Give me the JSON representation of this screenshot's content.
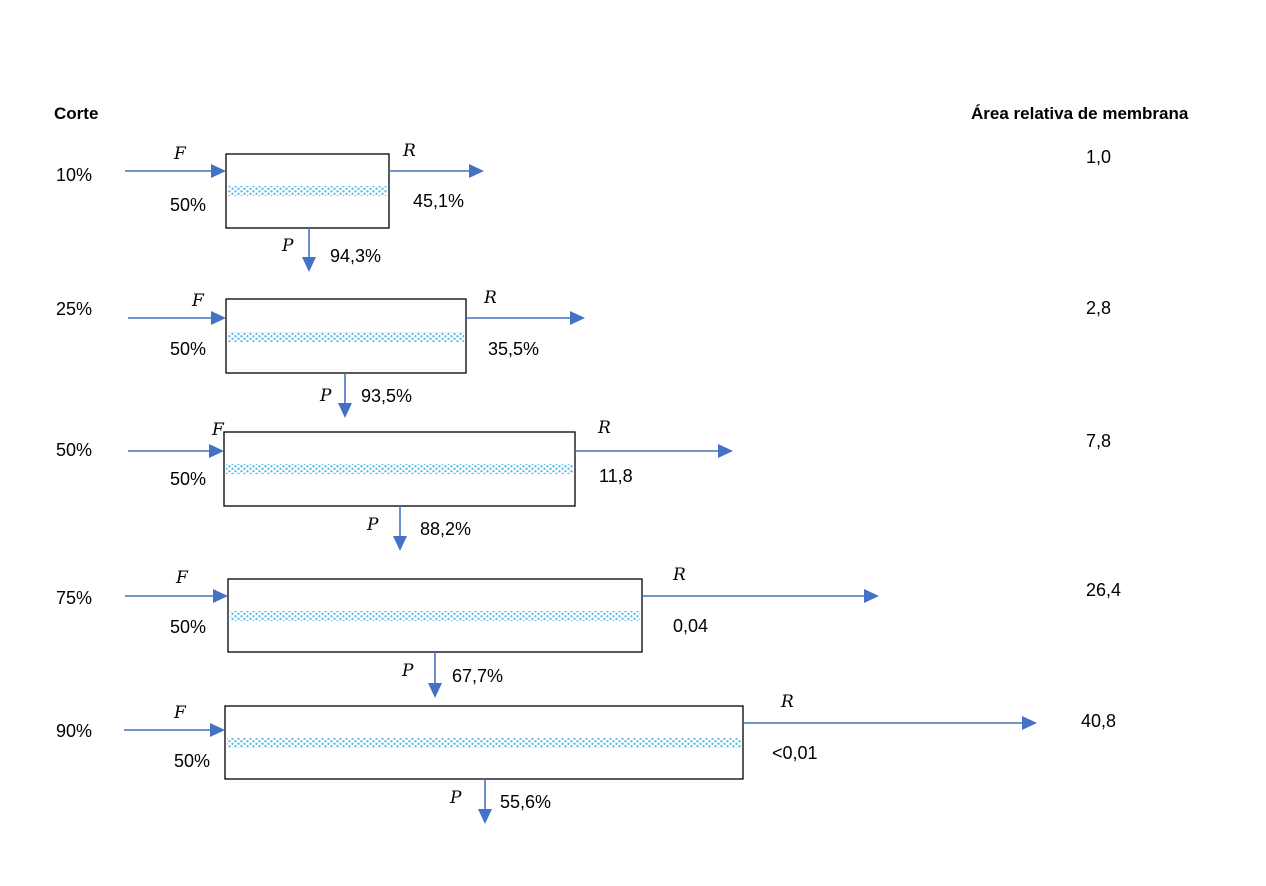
{
  "headers": {
    "cut": "Corte",
    "area": "Área relativa de membrana"
  },
  "colors": {
    "arrow": "#4472c4",
    "membrane": "#5bbbe6",
    "box_border": "#000000"
  },
  "stages": [
    {
      "cut": "10%",
      "feed_label": "F",
      "feed_fraction": "50%",
      "retentate_label": "R",
      "retentate_value": "45,1%",
      "permeate_label": "P",
      "permeate_value": "94,3%",
      "relative_area": "1,0"
    },
    {
      "cut": "25%",
      "feed_label": "F",
      "feed_fraction": "50%",
      "retentate_label": "R",
      "retentate_value": "35,5%",
      "permeate_label": "P",
      "permeate_value": "93,5%",
      "relative_area": "2,8"
    },
    {
      "cut": "50%",
      "feed_label": "F",
      "feed_fraction": "50%",
      "retentate_label": "R",
      "retentate_value": "11,8",
      "permeate_label": "P",
      "permeate_value": "88,2%",
      "relative_area": "7,8"
    },
    {
      "cut": "75%",
      "feed_label": "F",
      "feed_fraction": "50%",
      "retentate_label": "R",
      "retentate_value": "0,04",
      "permeate_label": "P",
      "permeate_value": "67,7%",
      "relative_area": "26,4"
    },
    {
      "cut": "90%",
      "feed_label": "F",
      "feed_fraction": "50%",
      "retentate_label": "R",
      "retentate_value": "<0,01",
      "permeate_label": "P",
      "permeate_value": "55,6%",
      "relative_area": "40,8"
    }
  ]
}
